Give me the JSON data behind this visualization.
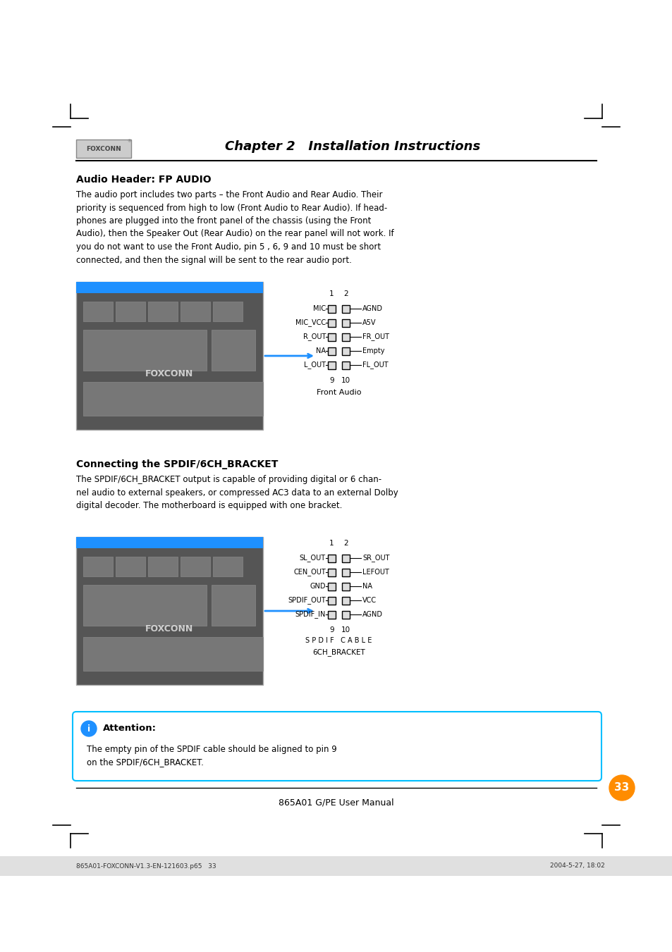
{
  "bg_color": "#ffffff",
  "page_width": 9.54,
  "page_height": 13.51,
  "chapter_title": "Chapter 2   Installation Instructions",
  "section1_title": "Audio Header: FP AUDIO",
  "section1_body": "The audio port includes two parts – the Front Audio and Rear Audio. Their\npriority is sequenced from high to low (Front Audio to Rear Audio). If head-\nphones are plugged into the front panel of the chassis (using the Front\nAudio), then the Speaker Out (Rear Audio) on the rear panel will not work. If\nyou do not want to use the Front Audio, pin 5 , 6, 9 and 10 must be short\nconnected, and then the signal will be sent to the rear audio port.",
  "section2_title": "Connecting the SPDIF/6CH_BRACKET",
  "section2_body": "The SPDIF/6CH_BRACKET output is capable of providing digital or 6 chan-\nnel audio to external speakers, or compressed AC3 data to an external Dolby\ndigital decoder. The motherboard is equipped with one bracket.",
  "attention_title": "Attention:",
  "attention_body": "The empty pin of the SPDIF cable should be aligned to pin 9\non the SPDIF/6CH_BRACKET.",
  "footer_text": "865A01 G/PE User Manual",
  "footer_page": "33",
  "bottom_bar_text1": "865A01-FOXCONN-V1.3-EN-121603.p65   33",
  "bottom_bar_text2": "2004-5-27, 18:02",
  "front_audio_label": "Front Audio",
  "spdif_label": "6CH_BRACKET",
  "spdif_cable_label": "S P D I F   C A B L E",
  "front_audio_pins_left": [
    "MIC",
    "MIC_VCC",
    "R_OUT",
    "NA",
    "L_OUT"
  ],
  "front_audio_pins_right": [
    "AGND",
    "A5V",
    "FR_OUT",
    "Empty",
    "FL_OUT"
  ],
  "spdif_pins_left": [
    "SL_OUT",
    "CEN_OUT",
    "GND",
    "SPDIF_OUT",
    "SPDIF_IN"
  ],
  "spdif_pins_right": [
    "SR_OUT",
    "LEFOUT",
    "NA",
    "VCC",
    "AGND"
  ],
  "pin_col1_label": "1",
  "pin_col2_label": "2",
  "pin_row_last_left": "9",
  "pin_row_last_right": "10",
  "arrow_color": "#1E90FF",
  "pin_fill": "#dddddd",
  "attention_border_color": "#00BFFF",
  "attention_icon_color": "#1E90FF",
  "page_circle_color": "#FF8C00",
  "logo_text": "FOXCONN",
  "logo_bg": "#cccccc",
  "logo_border": "#888888",
  "mb_bg": "#555555",
  "mb_border": "#aaaaaa",
  "mb_component_fill": "#777777",
  "mb_component_border": "#888888",
  "mb_text_color": "#ffffff",
  "footer_rule_color": "#000000",
  "bottom_bar_bg": "#e0e0e0",
  "bottom_bar_text_color": "#333333"
}
